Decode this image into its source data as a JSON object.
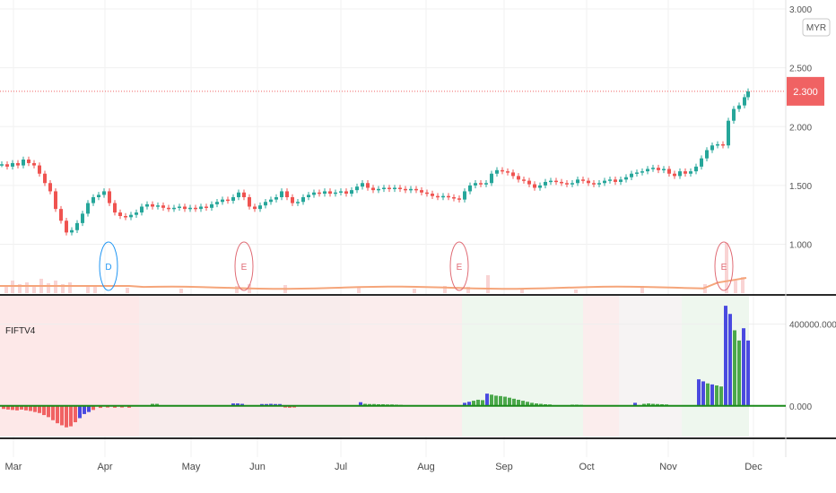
{
  "chart_data": {
    "type": "candlestick",
    "currency": "MYR",
    "x_ticks": [
      "Mar",
      "Apr",
      "May",
      "Jun",
      "Jul",
      "Aug",
      "Sep",
      "Oct",
      "Nov",
      "Dec"
    ],
    "price_axis": {
      "ylim": [
        0.6,
        3.0
      ],
      "ticks": [
        "3.000",
        "2.500",
        "2.000",
        "1.500",
        "1.000"
      ]
    },
    "last_price": "2.300",
    "price_points": [
      [
        0,
        1.68
      ],
      [
        6,
        1.66
      ],
      [
        12,
        1.69
      ],
      [
        18,
        1.67
      ],
      [
        24,
        1.72
      ],
      [
        30,
        1.69
      ],
      [
        36,
        1.67
      ],
      [
        42,
        1.6
      ],
      [
        48,
        1.52
      ],
      [
        54,
        1.45
      ],
      [
        60,
        1.3
      ],
      [
        66,
        1.2
      ],
      [
        72,
        1.1
      ],
      [
        78,
        1.12
      ],
      [
        84,
        1.18
      ],
      [
        90,
        1.26
      ],
      [
        96,
        1.35
      ],
      [
        102,
        1.4
      ],
      [
        108,
        1.42
      ],
      [
        114,
        1.45
      ],
      [
        120,
        1.35
      ],
      [
        126,
        1.27
      ],
      [
        132,
        1.24
      ],
      [
        138,
        1.23
      ],
      [
        144,
        1.25
      ],
      [
        150,
        1.27
      ],
      [
        156,
        1.32
      ],
      [
        162,
        1.34
      ],
      [
        168,
        1.32
      ],
      [
        174,
        1.33
      ],
      [
        180,
        1.31
      ],
      [
        186,
        1.3
      ],
      [
        192,
        1.31
      ],
      [
        198,
        1.32
      ],
      [
        204,
        1.3
      ],
      [
        210,
        1.31
      ],
      [
        216,
        1.3
      ],
      [
        222,
        1.32
      ],
      [
        228,
        1.31
      ],
      [
        234,
        1.34
      ],
      [
        240,
        1.36
      ],
      [
        246,
        1.38
      ],
      [
        252,
        1.37
      ],
      [
        258,
        1.4
      ],
      [
        264,
        1.44
      ],
      [
        270,
        1.4
      ],
      [
        276,
        1.32
      ],
      [
        282,
        1.3
      ],
      [
        288,
        1.33
      ],
      [
        294,
        1.36
      ],
      [
        300,
        1.38
      ],
      [
        306,
        1.4
      ],
      [
        312,
        1.45
      ],
      [
        318,
        1.4
      ],
      [
        324,
        1.35
      ],
      [
        330,
        1.36
      ],
      [
        336,
        1.4
      ],
      [
        342,
        1.42
      ],
      [
        348,
        1.44
      ],
      [
        354,
        1.43
      ],
      [
        360,
        1.45
      ],
      [
        366,
        1.43
      ],
      [
        372,
        1.44
      ],
      [
        378,
        1.45
      ],
      [
        384,
        1.43
      ],
      [
        390,
        1.46
      ],
      [
        396,
        1.49
      ],
      [
        402,
        1.52
      ],
      [
        408,
        1.48
      ],
      [
        414,
        1.46
      ],
      [
        420,
        1.47
      ],
      [
        426,
        1.48
      ],
      [
        432,
        1.47
      ],
      [
        438,
        1.48
      ],
      [
        444,
        1.47
      ],
      [
        450,
        1.46
      ],
      [
        456,
        1.47
      ],
      [
        462,
        1.46
      ],
      [
        468,
        1.44
      ],
      [
        474,
        1.43
      ],
      [
        480,
        1.41
      ],
      [
        486,
        1.4
      ],
      [
        492,
        1.41
      ],
      [
        498,
        1.4
      ],
      [
        504,
        1.39
      ],
      [
        510,
        1.38
      ],
      [
        516,
        1.45
      ],
      [
        522,
        1.5
      ],
      [
        528,
        1.52
      ],
      [
        534,
        1.51
      ],
      [
        540,
        1.52
      ],
      [
        546,
        1.6
      ],
      [
        552,
        1.63
      ],
      [
        558,
        1.62
      ],
      [
        564,
        1.61
      ],
      [
        570,
        1.58
      ],
      [
        576,
        1.55
      ],
      [
        582,
        1.54
      ],
      [
        588,
        1.51
      ],
      [
        594,
        1.48
      ],
      [
        600,
        1.5
      ],
      [
        606,
        1.53
      ],
      [
        612,
        1.54
      ],
      [
        618,
        1.53
      ],
      [
        624,
        1.52
      ],
      [
        630,
        1.51
      ],
      [
        636,
        1.52
      ],
      [
        642,
        1.55
      ],
      [
        648,
        1.54
      ],
      [
        654,
        1.52
      ],
      [
        660,
        1.51
      ],
      [
        666,
        1.52
      ],
      [
        672,
        1.54
      ],
      [
        678,
        1.55
      ],
      [
        684,
        1.53
      ],
      [
        690,
        1.55
      ],
      [
        696,
        1.57
      ],
      [
        702,
        1.6
      ],
      [
        708,
        1.61
      ],
      [
        714,
        1.62
      ],
      [
        720,
        1.64
      ],
      [
        726,
        1.65
      ],
      [
        732,
        1.63
      ],
      [
        738,
        1.64
      ],
      [
        744,
        1.6
      ],
      [
        750,
        1.58
      ],
      [
        756,
        1.62
      ],
      [
        762,
        1.6
      ],
      [
        768,
        1.62
      ],
      [
        774,
        1.66
      ],
      [
        780,
        1.73
      ],
      [
        786,
        1.8
      ],
      [
        792,
        1.84
      ],
      [
        798,
        1.85
      ],
      [
        804,
        1.84
      ],
      [
        810,
        2.05
      ],
      [
        816,
        2.15
      ],
      [
        822,
        2.18
      ],
      [
        828,
        2.25
      ],
      [
        832,
        2.3
      ]
    ],
    "events": [
      {
        "label": "D",
        "x": 121,
        "color": "#2196f3"
      },
      {
        "label": "E",
        "x": 272,
        "color": "#e06c75"
      },
      {
        "label": "E",
        "x": 512,
        "color": "#e06c75"
      },
      {
        "label": "E",
        "x": 807,
        "color": "#e06c75"
      }
    ],
    "volume_bars": [
      [
        5,
        8
      ],
      [
        12,
        14
      ],
      [
        20,
        10
      ],
      [
        28,
        12
      ],
      [
        36,
        9
      ],
      [
        44,
        16
      ],
      [
        52,
        11
      ],
      [
        60,
        14
      ],
      [
        68,
        10
      ],
      [
        76,
        12
      ],
      [
        96,
        9
      ],
      [
        104,
        8
      ],
      [
        140,
        6
      ],
      [
        200,
        5
      ],
      [
        262,
        8
      ],
      [
        276,
        10
      ],
      [
        316,
        9
      ],
      [
        398,
        6
      ],
      [
        460,
        5
      ],
      [
        494,
        8
      ],
      [
        520,
        7
      ],
      [
        542,
        20
      ],
      [
        580,
        5
      ],
      [
        640,
        4
      ],
      [
        714,
        8
      ],
      [
        784,
        10
      ],
      [
        808,
        56
      ],
      [
        818,
        14
      ],
      [
        826,
        18
      ]
    ],
    "indicator": {
      "title": "FIFTV4",
      "axis_ticks": [
        "400000.000",
        "0.000"
      ],
      "ylim": [
        -150000,
        530000
      ],
      "baseline": 0,
      "histogram": [
        [
          2,
          -15000,
          "#f06263"
        ],
        [
          7,
          -18000,
          "#f06263"
        ],
        [
          12,
          -20000,
          "#f06263"
        ],
        [
          17,
          -22000,
          "#f06263"
        ],
        [
          22,
          -18000,
          "#f06263"
        ],
        [
          27,
          -22000,
          "#f06263"
        ],
        [
          32,
          -25000,
          "#f06263"
        ],
        [
          37,
          -30000,
          "#f06263"
        ],
        [
          42,
          -35000,
          "#f06263"
        ],
        [
          47,
          -45000,
          "#f06263"
        ],
        [
          52,
          -55000,
          "#f06263"
        ],
        [
          57,
          -70000,
          "#f06263"
        ],
        [
          62,
          -85000,
          "#f06263"
        ],
        [
          67,
          -95000,
          "#f06263"
        ],
        [
          72,
          -105000,
          "#f06263"
        ],
        [
          77,
          -100000,
          "#f06263"
        ],
        [
          82,
          -80000,
          "#f06263"
        ],
        [
          87,
          -60000,
          "#4a4ae0"
        ],
        [
          92,
          -40000,
          "#4a4ae0"
        ],
        [
          97,
          -30000,
          "#4a4ae0"
        ],
        [
          102,
          -20000,
          "#f06263"
        ],
        [
          110,
          -10000,
          "#f06263"
        ],
        [
          118,
          -8000,
          "#f06263"
        ],
        [
          126,
          -9000,
          "#f06263"
        ],
        [
          134,
          -8000,
          "#f06263"
        ],
        [
          142,
          -9000,
          "#f06263"
        ],
        [
          168,
          10000,
          "#4ba84b"
        ],
        [
          173,
          10000,
          "#4ba84b"
        ],
        [
          258,
          12000,
          "#4a4ae0"
        ],
        [
          263,
          12000,
          "#4a4ae0"
        ],
        [
          268,
          10000,
          "#4a4ae0"
        ],
        [
          290,
          9000,
          "#4a4ae0"
        ],
        [
          295,
          9000,
          "#4a4ae0"
        ],
        [
          300,
          10000,
          "#4a4ae0"
        ],
        [
          305,
          9000,
          "#4a4ae0"
        ],
        [
          310,
          9000,
          "#4a4ae0"
        ],
        [
          316,
          -8000,
          "#f06263"
        ],
        [
          321,
          -9000,
          "#f06263"
        ],
        [
          326,
          -8000,
          "#f06263"
        ],
        [
          400,
          18000,
          "#4a4ae0"
        ],
        [
          405,
          10000,
          "#4ba84b"
        ],
        [
          410,
          9000,
          "#4ba84b"
        ],
        [
          415,
          9000,
          "#4ba84b"
        ],
        [
          420,
          8000,
          "#4ba84b"
        ],
        [
          425,
          8000,
          "#4ba84b"
        ],
        [
          430,
          7000,
          "#4ba84b"
        ],
        [
          435,
          7000,
          "#4ba84b"
        ],
        [
          440,
          6000,
          "#4ba84b"
        ],
        [
          445,
          5000,
          "#4ba84b"
        ],
        [
          516,
          15000,
          "#4a4ae0"
        ],
        [
          521,
          20000,
          "#4a4ae0"
        ],
        [
          526,
          25000,
          "#4ba84b"
        ],
        [
          531,
          30000,
          "#4ba84b"
        ],
        [
          536,
          28000,
          "#4ba84b"
        ],
        [
          541,
          60000,
          "#4a4ae0"
        ],
        [
          546,
          55000,
          "#4ba84b"
        ],
        [
          551,
          50000,
          "#4ba84b"
        ],
        [
          556,
          48000,
          "#4ba84b"
        ],
        [
          561,
          45000,
          "#4ba84b"
        ],
        [
          566,
          40000,
          "#4ba84b"
        ],
        [
          571,
          35000,
          "#4ba84b"
        ],
        [
          576,
          30000,
          "#4ba84b"
        ],
        [
          581,
          25000,
          "#4ba84b"
        ],
        [
          586,
          20000,
          "#4ba84b"
        ],
        [
          591,
          15000,
          "#4ba84b"
        ],
        [
          596,
          12000,
          "#4ba84b"
        ],
        [
          601,
          10000,
          "#4ba84b"
        ],
        [
          606,
          8000,
          "#4ba84b"
        ],
        [
          611,
          7000,
          "#4ba84b"
        ],
        [
          636,
          6000,
          "#4ba84b"
        ],
        [
          641,
          6000,
          "#4ba84b"
        ],
        [
          646,
          5000,
          "#4ba84b"
        ],
        [
          706,
          15000,
          "#4a4ae0"
        ],
        [
          716,
          10000,
          "#4ba84b"
        ],
        [
          721,
          12000,
          "#4ba84b"
        ],
        [
          726,
          10000,
          "#4ba84b"
        ],
        [
          731,
          9000,
          "#4ba84b"
        ],
        [
          736,
          8000,
          "#4ba84b"
        ],
        [
          741,
          7000,
          "#4ba84b"
        ],
        [
          777,
          130000,
          "#4a4ae0"
        ],
        [
          782,
          120000,
          "#4a4ae0"
        ],
        [
          787,
          110000,
          "#4ba84b"
        ],
        [
          792,
          105000,
          "#4a4ae0"
        ],
        [
          797,
          100000,
          "#4ba84b"
        ],
        [
          802,
          95000,
          "#4ba84b"
        ],
        [
          807,
          490000,
          "#4a4ae0"
        ],
        [
          812,
          450000,
          "#4a4ae0"
        ],
        [
          817,
          370000,
          "#4ba84b"
        ],
        [
          822,
          320000,
          "#4ba84b"
        ],
        [
          827,
          380000,
          "#4a4ae0"
        ],
        [
          832,
          320000,
          "#4a4ae0"
        ]
      ],
      "background_regions": [
        [
          0,
          155,
          "#fde8e8"
        ],
        [
          155,
          390,
          "#f8ecec"
        ],
        [
          390,
          515,
          "#fbeded"
        ],
        [
          515,
          650,
          "#eef7ee"
        ],
        [
          650,
          690,
          "#fbeded"
        ],
        [
          690,
          760,
          "#f6f3f3"
        ],
        [
          760,
          835,
          "#eef7ee"
        ]
      ]
    }
  }
}
